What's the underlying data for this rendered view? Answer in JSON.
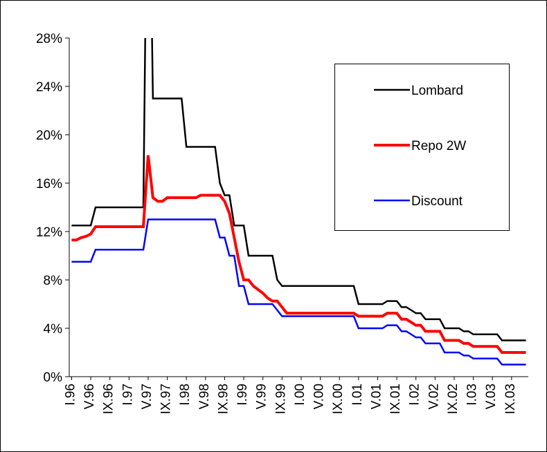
{
  "chart_data": {
    "type": "line",
    "categories": [
      "I.96",
      null,
      null,
      null,
      "V.96",
      null,
      null,
      null,
      "IX.96",
      null,
      null,
      null,
      "I.97",
      null,
      null,
      null,
      "V.97",
      null,
      null,
      null,
      "IX.97",
      null,
      null,
      null,
      "I.98",
      null,
      null,
      null,
      "V.98",
      null,
      null,
      null,
      "IX.98",
      null,
      null,
      null,
      "I.99",
      null,
      null,
      null,
      "V.99",
      null,
      null,
      null,
      "IX.99",
      null,
      null,
      null,
      "I.00",
      null,
      null,
      null,
      "V.00",
      null,
      null,
      null,
      "IX.00",
      null,
      null,
      null,
      "I.01",
      null,
      null,
      null,
      "V.01",
      null,
      null,
      null,
      "IX.01",
      null,
      null,
      null,
      "I.02",
      null,
      null,
      null,
      "V.02",
      null,
      null,
      null,
      "IX.02",
      null,
      null,
      null,
      "I.03",
      null,
      null,
      null,
      "V.03",
      null,
      null,
      null,
      "IX.03",
      null,
      null,
      null
    ],
    "series": [
      {
        "name": "Lombard",
        "color": "#000000",
        "values": [
          12.5,
          12.5,
          12.5,
          12.5,
          12.5,
          14,
          14,
          14,
          14,
          14,
          14,
          14,
          14,
          14,
          14,
          14,
          50,
          23,
          23,
          23,
          23,
          23,
          23,
          23,
          19,
          19,
          19,
          19,
          19,
          19,
          19,
          16,
          15,
          15,
          12.5,
          12.5,
          12.5,
          10,
          10,
          10,
          10,
          10,
          10,
          8,
          7.5,
          7.5,
          7.5,
          7.5,
          7.5,
          7.5,
          7.5,
          7.5,
          7.5,
          7.5,
          7.5,
          7.5,
          7.5,
          7.5,
          7.5,
          7.5,
          6,
          6,
          6,
          6,
          6,
          6,
          6.25,
          6.25,
          6.25,
          5.75,
          5.75,
          5.5,
          5.25,
          5.25,
          4.75,
          4.75,
          4.75,
          4.75,
          4,
          4,
          4,
          4,
          3.75,
          3.75,
          3.5,
          3.5,
          3.5,
          3.5,
          3.5,
          3.5,
          3,
          3,
          3,
          3,
          3,
          3
        ]
      },
      {
        "name": "Repo 2W",
        "color": "#ff0000",
        "values": [
          11.3,
          11.3,
          11.5,
          11.6,
          11.8,
          12.4,
          12.4,
          12.4,
          12.4,
          12.4,
          12.4,
          12.4,
          12.4,
          12.4,
          12.4,
          12.4,
          18.3,
          14.8,
          14.5,
          14.5,
          14.8,
          14.8,
          14.8,
          14.8,
          14.8,
          14.8,
          14.8,
          15,
          15,
          15,
          15,
          15,
          14.5,
          13.5,
          11.5,
          9.5,
          8,
          8,
          7.5,
          7.2,
          6.9,
          6.5,
          6.25,
          6.25,
          5.75,
          5.25,
          5.25,
          5.25,
          5.25,
          5.25,
          5.25,
          5.25,
          5.25,
          5.25,
          5.25,
          5.25,
          5.25,
          5.25,
          5.25,
          5.25,
          5,
          5,
          5,
          5,
          5,
          5,
          5.25,
          5.25,
          5.25,
          4.75,
          4.75,
          4.5,
          4.25,
          4.25,
          3.75,
          3.75,
          3.75,
          3.75,
          3,
          3,
          3,
          3,
          2.75,
          2.75,
          2.5,
          2.5,
          2.5,
          2.5,
          2.5,
          2.5,
          2,
          2,
          2,
          2,
          2,
          2
        ]
      },
      {
        "name": "Discount",
        "color": "#0000ff",
        "values": [
          9.5,
          9.5,
          9.5,
          9.5,
          9.5,
          10.5,
          10.5,
          10.5,
          10.5,
          10.5,
          10.5,
          10.5,
          10.5,
          10.5,
          10.5,
          10.5,
          13,
          13,
          13,
          13,
          13,
          13,
          13,
          13,
          13,
          13,
          13,
          13,
          13,
          13,
          13,
          11.5,
          11.5,
          10,
          10,
          7.5,
          7.5,
          6,
          6,
          6,
          6,
          6,
          6,
          5.5,
          5,
          5,
          5,
          5,
          5,
          5,
          5,
          5,
          5,
          5,
          5,
          5,
          5,
          5,
          5,
          5,
          4,
          4,
          4,
          4,
          4,
          4,
          4.25,
          4.25,
          4.25,
          3.75,
          3.75,
          3.5,
          3.25,
          3.25,
          2.75,
          2.75,
          2.75,
          2.75,
          2,
          2,
          2,
          2,
          1.75,
          1.75,
          1.5,
          1.5,
          1.5,
          1.5,
          1.5,
          1.5,
          1,
          1,
          1,
          1,
          1,
          1
        ]
      }
    ],
    "ylim": [
      0,
      28
    ],
    "yticks": [
      {
        "value": 0,
        "label": "0%"
      },
      {
        "value": 4,
        "label": "4%"
      },
      {
        "value": 8,
        "label": "8%"
      },
      {
        "value": 12,
        "label": "12%"
      },
      {
        "value": 16,
        "label": "16%"
      },
      {
        "value": 20,
        "label": "20%"
      },
      {
        "value": 24,
        "label": "24%"
      },
      {
        "value": 28,
        "label": "28%"
      }
    ],
    "legend": "upper right"
  }
}
